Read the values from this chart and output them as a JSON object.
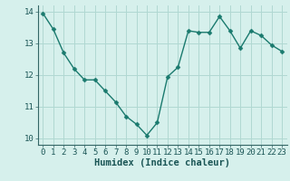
{
  "x": [
    0,
    1,
    2,
    3,
    4,
    5,
    6,
    7,
    8,
    9,
    10,
    11,
    12,
    13,
    14,
    15,
    16,
    17,
    18,
    19,
    20,
    21,
    22,
    23
  ],
  "y": [
    13.95,
    13.45,
    12.7,
    12.2,
    11.85,
    11.85,
    11.5,
    11.15,
    10.7,
    10.45,
    10.1,
    10.5,
    11.95,
    12.25,
    13.4,
    13.35,
    13.35,
    13.85,
    13.4,
    12.85,
    13.4,
    13.25,
    12.95,
    12.75
  ],
  "line_color": "#1a7a6e",
  "marker": "D",
  "marker_size": 2.5,
  "bg_color": "#d6f0ec",
  "grid_color": "#b0d8d2",
  "xlabel": "Humidex (Indice chaleur)",
  "ylim": [
    9.8,
    14.2
  ],
  "xlim": [
    -0.5,
    23.5
  ],
  "yticks": [
    10,
    11,
    12,
    13,
    14
  ],
  "xticks": [
    0,
    1,
    2,
    3,
    4,
    5,
    6,
    7,
    8,
    9,
    10,
    11,
    12,
    13,
    14,
    15,
    16,
    17,
    18,
    19,
    20,
    21,
    22,
    23
  ],
  "tick_fontsize": 6.5,
  "xlabel_fontsize": 7.5
}
